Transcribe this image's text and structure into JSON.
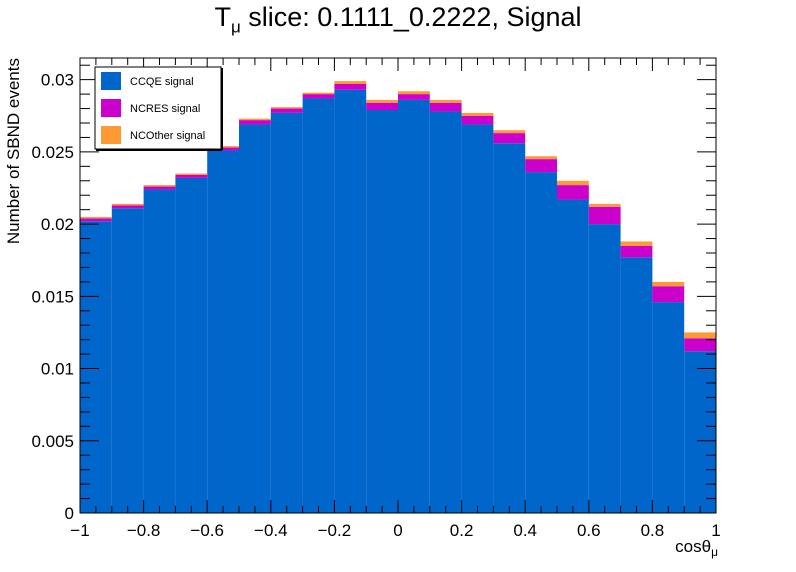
{
  "chart_data": {
    "type": "bar",
    "title_main": "T",
    "title_sub": "μ",
    "title_rest": " slice: 0.1111_0.2222, Signal",
    "xlabel_main": "cosθ",
    "xlabel_sub": "μ",
    "ylabel": "Number of SBND events",
    "xlim": [
      -1,
      1
    ],
    "ylim": [
      0,
      0.0315
    ],
    "x_ticks": [
      "−1",
      "−0.8",
      "−0.6",
      "−0.4",
      "−0.2",
      "0",
      "0.2",
      "0.4",
      "0.6",
      "0.8",
      "1"
    ],
    "y_ticks": [
      "0",
      "0.005",
      "0.01",
      "0.015",
      "0.02",
      "0.025",
      "0.03"
    ],
    "bin_edges": [
      -1.0,
      -0.9,
      -0.8,
      -0.7,
      -0.6,
      -0.5,
      -0.4,
      -0.3,
      -0.2,
      -0.1,
      0.0,
      0.1,
      0.2,
      0.3,
      0.4,
      0.5,
      0.6,
      0.7,
      0.8,
      0.9,
      1.0
    ],
    "stacked": true,
    "series": [
      {
        "name": "CCQE signal",
        "color": "#0066cc",
        "values": [
          0.0202,
          0.0211,
          0.0224,
          0.0232,
          0.0251,
          0.0269,
          0.0277,
          0.0287,
          0.0293,
          0.0279,
          0.0286,
          0.0278,
          0.0269,
          0.0256,
          0.0236,
          0.0217,
          0.02,
          0.0177,
          0.0146,
          0.0112
        ]
      },
      {
        "name": "NCRES signal",
        "color": "#cc00cc",
        "values": [
          0.0002,
          0.0002,
          0.0002,
          0.0002,
          0.0002,
          0.0003,
          0.0003,
          0.0003,
          0.0004,
          0.0005,
          0.0004,
          0.0006,
          0.0006,
          0.0007,
          0.0009,
          0.001,
          0.0012,
          0.0008,
          0.0011,
          0.0009
        ]
      },
      {
        "name": "NCOther signal",
        "color": "#ff9933",
        "values": [
          0.0001,
          0.0001,
          0.0001,
          0.0001,
          0.0001,
          0.0001,
          0.0001,
          0.0001,
          0.0002,
          0.0002,
          0.0002,
          0.0002,
          0.0002,
          0.0002,
          0.0002,
          0.0003,
          0.0002,
          0.0003,
          0.0003,
          0.0004
        ]
      }
    ],
    "legend_position": "top-left",
    "grid": false
  }
}
